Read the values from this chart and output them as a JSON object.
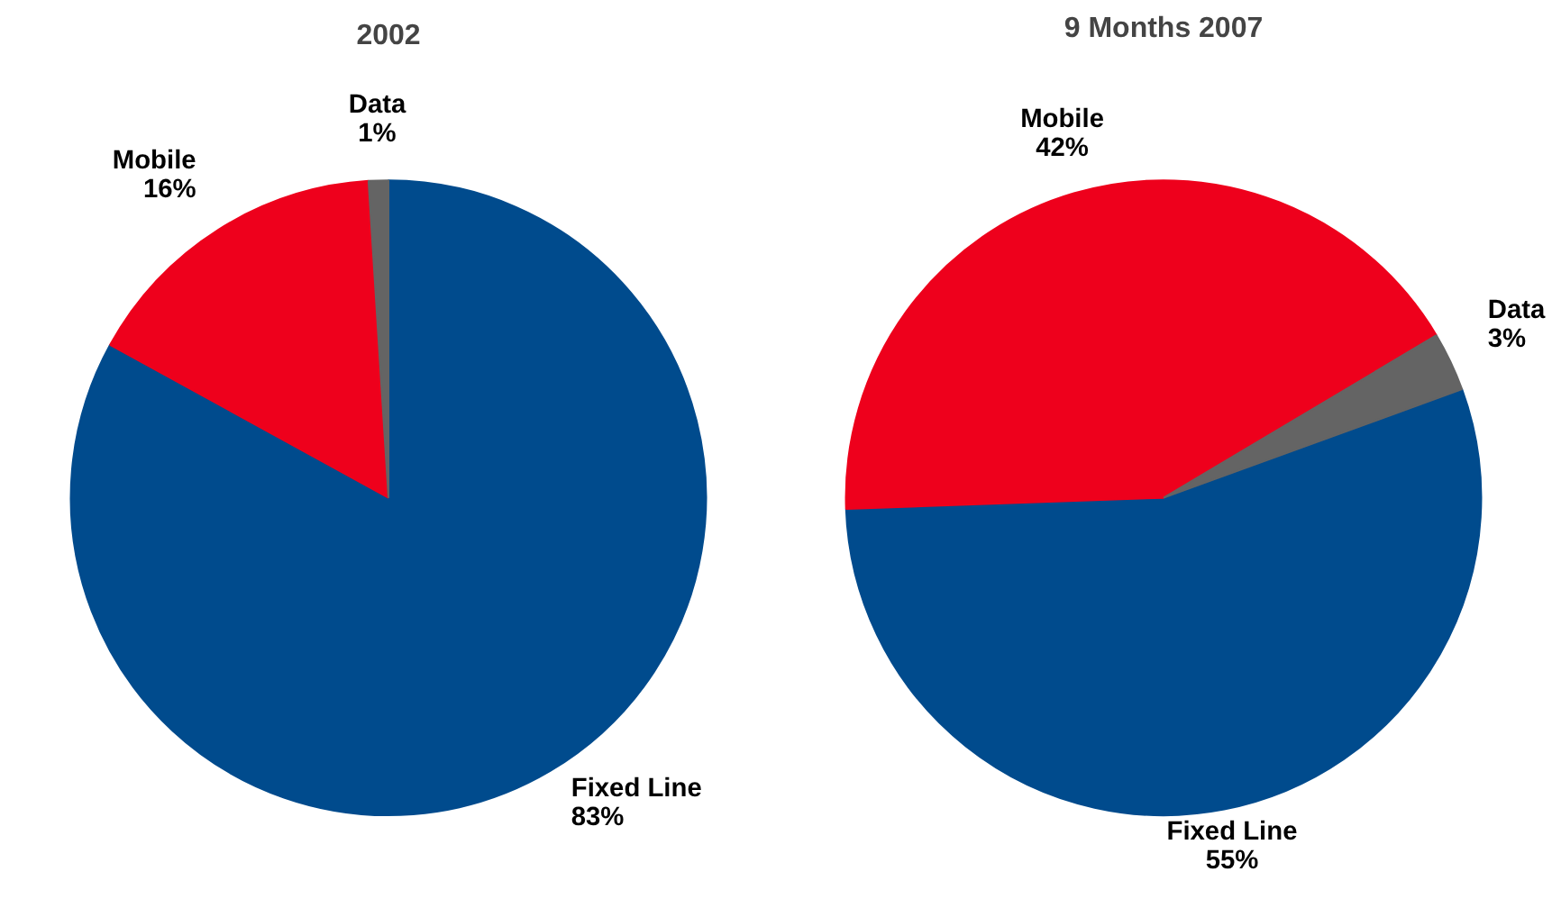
{
  "chart_data": [
    {
      "type": "pie",
      "title": "2002",
      "categories": [
        "Fixed Line",
        "Mobile",
        "Data"
      ],
      "values": [
        83,
        16,
        1
      ],
      "colors": [
        "#004b8d",
        "#ee001c",
        "#646464"
      ],
      "value_labels": [
        "83%",
        "16%",
        "1%"
      ]
    },
    {
      "type": "pie",
      "title": "9 Months 2007",
      "categories": [
        "Fixed Line",
        "Mobile",
        "Data"
      ],
      "values": [
        55,
        42,
        3
      ],
      "colors": [
        "#004b8d",
        "#ee001c",
        "#646464"
      ],
      "value_labels": [
        "55%",
        "42%",
        "3%"
      ]
    }
  ]
}
